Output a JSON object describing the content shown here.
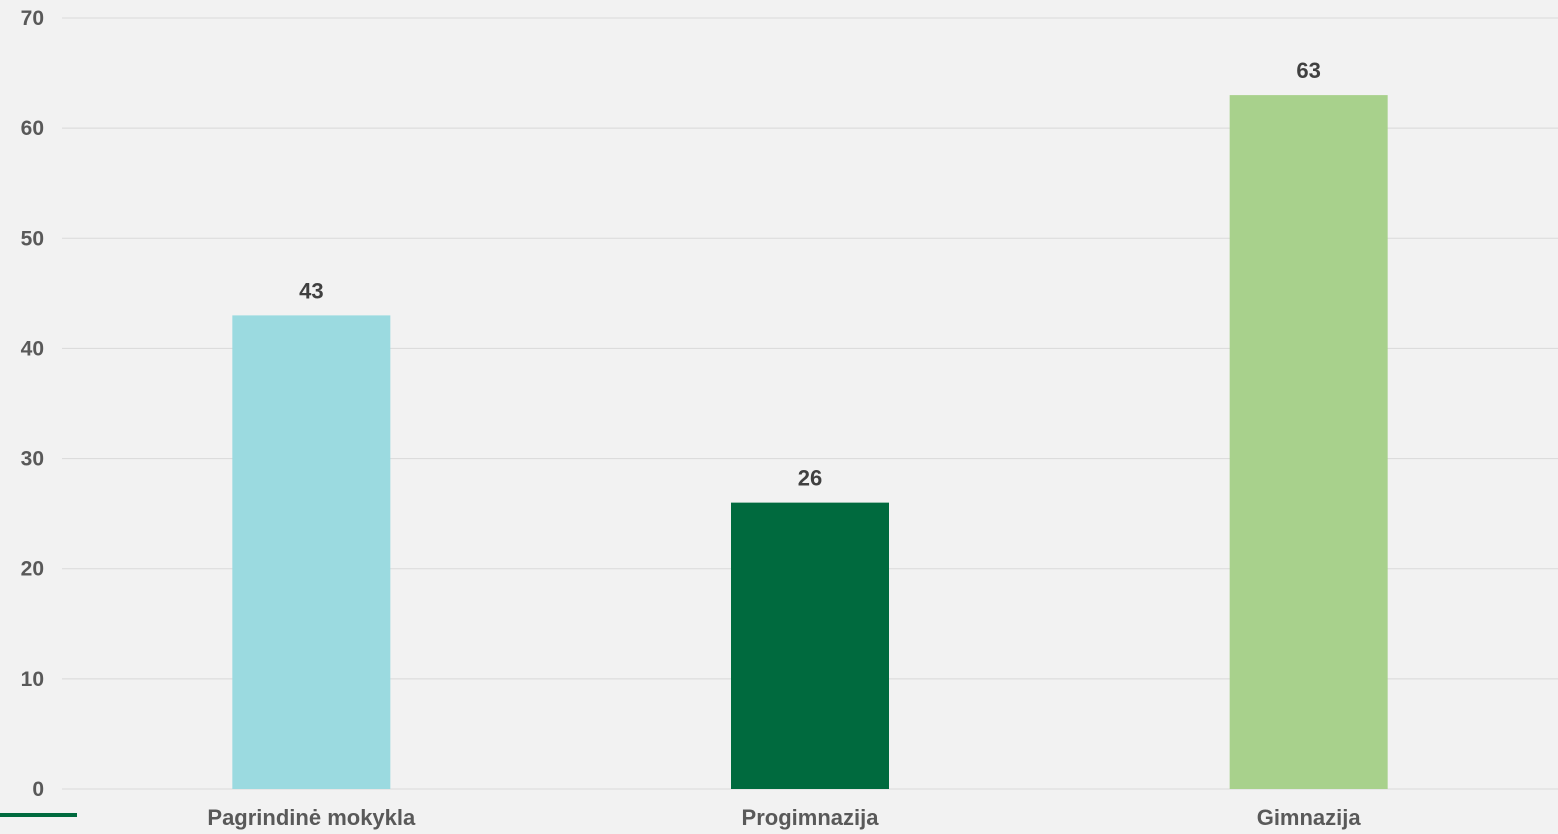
{
  "chart_data": {
    "type": "bar",
    "categories": [
      "Pagrindinė mokykla",
      "Progimnazija",
      "Gimnazija"
    ],
    "values": [
      43,
      26,
      63
    ],
    "colors": [
      "#9bdae0",
      "#006a3e",
      "#a8d18c"
    ],
    "ylim": [
      0,
      70
    ],
    "yticks": [
      0,
      10,
      20,
      30,
      40,
      50,
      60,
      70
    ],
    "grid": true,
    "data_labels": true,
    "accent_color": "#006a3e"
  }
}
